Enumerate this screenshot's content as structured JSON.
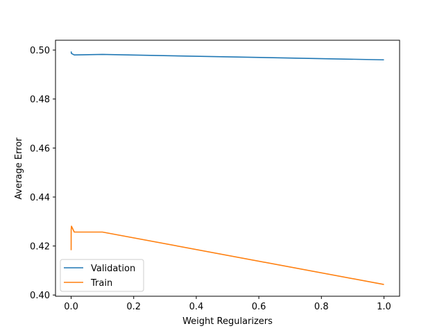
{
  "chart_data": {
    "type": "line",
    "title": "",
    "xlabel": "Weight Regularizers",
    "ylabel": "Average Error",
    "xlim": [
      -0.05,
      1.05
    ],
    "ylim": [
      0.3995,
      0.504
    ],
    "xticks": [
      0.0,
      0.2,
      0.4,
      0.6,
      0.8,
      1.0
    ],
    "xtick_labels": [
      "0.0",
      "0.2",
      "0.4",
      "0.6",
      "0.8",
      "1.0"
    ],
    "yticks": [
      0.4,
      0.42,
      0.44,
      0.46,
      0.48,
      0.5
    ],
    "ytick_labels": [
      "0.40",
      "0.42",
      "0.44",
      "0.46",
      "0.48",
      "0.50"
    ],
    "grid": false,
    "legend_position": "lower-left",
    "series": [
      {
        "name": "Validation",
        "color": "#1f77b4",
        "x": [
          0.0,
          0.001,
          0.01,
          0.1,
          1.0
        ],
        "y": [
          0.4994,
          0.4986,
          0.498,
          0.4982,
          0.496
        ]
      },
      {
        "name": "Train",
        "color": "#ff7f0e",
        "x": [
          0.0,
          0.0001,
          0.001,
          0.01,
          0.1,
          1.0
        ],
        "y": [
          0.4183,
          0.4265,
          0.4281,
          0.4257,
          0.4257,
          0.4043
        ]
      }
    ]
  }
}
